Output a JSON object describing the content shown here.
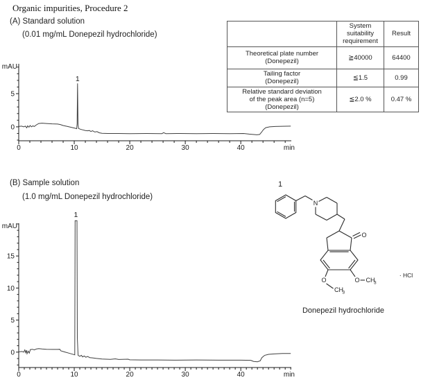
{
  "page": {
    "title": "Organic impurities, Procedure 2"
  },
  "section_a": {
    "heading": "(A) Standard solution",
    "subheading": "(0.01 mg/mL Donepezil hydrochloride)"
  },
  "section_b": {
    "heading": "(B) Sample solution",
    "subheading": "(1.0 mg/mL Donepezil hydrochloride)"
  },
  "table": {
    "headers": [
      "",
      "System\nsuitability\nrequirement",
      "Result"
    ],
    "rows": [
      [
        "Theoretical plate number\n(Donepezil)",
        "≧40000",
        "64400"
      ],
      [
        "Tailing factor\n(Donepezil)",
        "≦1.5",
        "0.99"
      ],
      [
        "Relative standard deviation\nof the peak area (n=5)\n(Donepezil)",
        "≦2.0 %",
        "0.47 %"
      ]
    ]
  },
  "chart_data": [
    {
      "type": "line",
      "name": "Standard solution chromatogram",
      "xlabel": "min",
      "ylabel": "mAU",
      "xlim": [
        0,
        49.1
      ],
      "ylim": [
        -2.1,
        9.5
      ],
      "xticks": [
        0,
        10,
        20,
        30,
        40
      ],
      "x_minor_step": 2,
      "yticks": [
        0,
        5
      ],
      "y_minor_step": 1,
      "peak": {
        "label": "1",
        "t": 10.6,
        "apex_mAU": 6.6
      },
      "points": [
        [
          0,
          0.05
        ],
        [
          0.5,
          0.1
        ],
        [
          0.9,
          0.0
        ],
        [
          1.2,
          0.1
        ],
        [
          1.45,
          -0.15
        ],
        [
          1.6,
          0.15
        ],
        [
          1.85,
          -0.05
        ],
        [
          2.05,
          0.2
        ],
        [
          2.3,
          0.0
        ],
        [
          2.55,
          0.15
        ],
        [
          2.8,
          0.05
        ],
        [
          3.2,
          0.3
        ],
        [
          3.6,
          0.5
        ],
        [
          4.2,
          0.55
        ],
        [
          5,
          0.5
        ],
        [
          6,
          0.45
        ],
        [
          7,
          0.42
        ],
        [
          7.5,
          0.35
        ],
        [
          8,
          0.2
        ],
        [
          8.8,
          0.05
        ],
        [
          9.6,
          -0.1
        ],
        [
          10.2,
          -0.22
        ],
        [
          10.45,
          -0.28
        ],
        [
          10.52,
          0.5
        ],
        [
          10.6,
          6.55
        ],
        [
          10.68,
          0.3
        ],
        [
          10.78,
          -0.25
        ],
        [
          11.1,
          -0.35
        ],
        [
          11.5,
          -0.45
        ],
        [
          12,
          -0.55
        ],
        [
          12.4,
          -0.6
        ],
        [
          12.7,
          -0.55
        ],
        [
          13,
          -0.7
        ],
        [
          13.3,
          -0.6
        ],
        [
          13.7,
          -0.78
        ],
        [
          14.1,
          -0.72
        ],
        [
          14.5,
          -0.9
        ],
        [
          15,
          -0.97
        ],
        [
          16,
          -1.0
        ],
        [
          18,
          -1.0
        ],
        [
          20,
          -1.02
        ],
        [
          23,
          -1.0
        ],
        [
          25.8,
          -1.02
        ],
        [
          26.1,
          -0.88
        ],
        [
          26.5,
          -1.02
        ],
        [
          29,
          -1.0
        ],
        [
          32,
          -1.02
        ],
        [
          35,
          -1.0
        ],
        [
          38,
          -1.02
        ],
        [
          40.5,
          -1.0
        ],
        [
          41.5,
          -1.1
        ],
        [
          42.2,
          -1.15
        ],
        [
          42.9,
          -1.2
        ],
        [
          43.4,
          -1.15
        ],
        [
          43.7,
          -0.85
        ],
        [
          44.1,
          -0.4
        ],
        [
          44.5,
          -0.12
        ],
        [
          45.2,
          0.0
        ],
        [
          46.2,
          0.05
        ],
        [
          47.5,
          0.08
        ],
        [
          49,
          0.1
        ]
      ]
    },
    {
      "type": "line",
      "name": "Sample solution chromatogram",
      "xlabel": "min",
      "ylabel": "mAU",
      "xlim": [
        0,
        49.1
      ],
      "ylim": [
        -2.4,
        20.1
      ],
      "xticks": [
        0,
        10,
        20,
        30,
        40
      ],
      "x_minor_step": 1,
      "yticks": [
        0,
        5,
        10,
        15
      ],
      "y_minor_step": 1,
      "peak": {
        "label": "1",
        "t": 10.3,
        "apex_mAU": 20.5
      },
      "points": [
        [
          0,
          0.05
        ],
        [
          0.6,
          0.1
        ],
        [
          0.9,
          0.0
        ],
        [
          1.1,
          0.35
        ],
        [
          1.25,
          -0.1
        ],
        [
          1.4,
          0.3
        ],
        [
          1.5,
          -0.25
        ],
        [
          1.7,
          0.15
        ],
        [
          1.9,
          -0.15
        ],
        [
          2.1,
          0.4
        ],
        [
          2.5,
          0.45
        ],
        [
          2.8,
          0.35
        ],
        [
          3.2,
          0.5
        ],
        [
          3.6,
          0.55
        ],
        [
          4.2,
          0.5
        ],
        [
          5,
          0.45
        ],
        [
          6,
          0.42
        ],
        [
          7,
          0.42
        ],
        [
          7.4,
          0.45
        ],
        [
          7.6,
          0.2
        ],
        [
          8.2,
          0.05
        ],
        [
          9,
          -0.15
        ],
        [
          9.7,
          -0.32
        ],
        [
          10.1,
          -0.42
        ],
        [
          10.16,
          20.5
        ],
        [
          10.5,
          20.5
        ],
        [
          10.56,
          2.2
        ],
        [
          10.7,
          -0.5
        ],
        [
          11,
          -0.65
        ],
        [
          11.3,
          -0.5
        ],
        [
          11.5,
          -0.75
        ],
        [
          11.8,
          -0.6
        ],
        [
          12.1,
          -0.8
        ],
        [
          12.4,
          -0.68
        ],
        [
          12.8,
          -0.85
        ],
        [
          13.3,
          -0.9
        ],
        [
          14,
          -0.98
        ],
        [
          15,
          -1.08
        ],
        [
          16.5,
          -1.12
        ],
        [
          17.4,
          -1.05
        ],
        [
          18,
          -1.15
        ],
        [
          19.7,
          -1.1
        ],
        [
          20,
          -1.2
        ],
        [
          22,
          -1.22
        ],
        [
          25,
          -1.22
        ],
        [
          28,
          -1.25
        ],
        [
          32,
          -1.22
        ],
        [
          36,
          -1.25
        ],
        [
          40,
          -1.25
        ],
        [
          41.8,
          -1.28
        ],
        [
          42.3,
          -1.45
        ],
        [
          43,
          -1.5
        ],
        [
          43.5,
          -1.35
        ],
        [
          43.8,
          -0.85
        ],
        [
          44.3,
          -0.5
        ],
        [
          45,
          -0.35
        ],
        [
          46,
          -0.28
        ],
        [
          47.5,
          -0.22
        ],
        [
          49,
          -0.2
        ]
      ]
    }
  ],
  "structure": {
    "label": "1",
    "caption": "Donepezil hydrochloride",
    "atoms": {
      "n": "N",
      "carbonyl_o": "O",
      "o_left": "O",
      "o_right": "O",
      "methyl": "CH",
      "methyl_sub": "3",
      "salt_dot": ".",
      "salt": "HCl"
    }
  }
}
